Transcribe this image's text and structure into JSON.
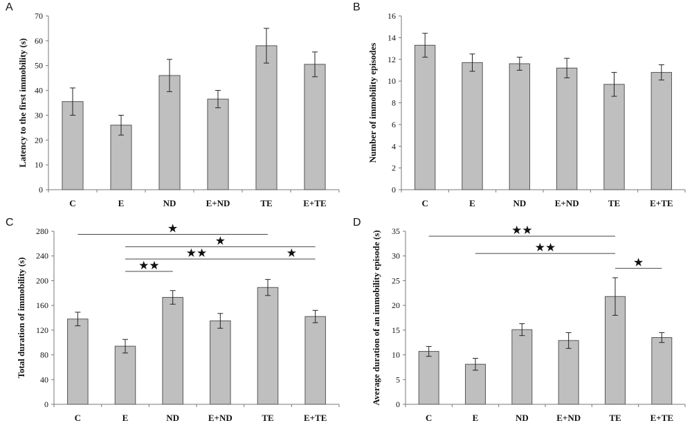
{
  "chart_data": [
    {
      "panel": "A",
      "type": "bar",
      "categories": [
        "C",
        "E",
        "ND",
        "E+ND",
        "TE",
        "E+TE"
      ],
      "values": [
        35.5,
        26,
        46,
        36.5,
        58,
        50.5
      ],
      "errors": [
        5.5,
        4,
        6.5,
        3.5,
        7,
        5
      ],
      "ylabel": "Latency to the first immobility (s)",
      "ylim": [
        0,
        70
      ],
      "yticks": [
        0,
        10,
        20,
        30,
        40,
        50,
        60,
        70
      ],
      "significance": []
    },
    {
      "panel": "B",
      "type": "bar",
      "categories": [
        "C",
        "E",
        "ND",
        "E+ND",
        "TE",
        "E+TE"
      ],
      "values": [
        13.3,
        11.7,
        11.6,
        11.2,
        9.7,
        10.8
      ],
      "errors": [
        1.1,
        0.8,
        0.6,
        0.9,
        1.1,
        0.7
      ],
      "ylabel": "Number of immobility episodes",
      "ylim": [
        0,
        16
      ],
      "yticks": [
        0,
        2,
        4,
        6,
        8,
        10,
        12,
        14,
        16
      ],
      "significance": []
    },
    {
      "panel": "C",
      "type": "bar",
      "categories": [
        "C",
        "E",
        "ND",
        "E+ND",
        "TE",
        "E+TE"
      ],
      "values": [
        138,
        94,
        173,
        135,
        189,
        142
      ],
      "errors": [
        11,
        11,
        11,
        12,
        13,
        10
      ],
      "ylabel": "Total duration of immobility (s)",
      "ylim": [
        0,
        280
      ],
      "yticks": [
        0,
        40,
        80,
        120,
        160,
        200,
        240,
        280
      ],
      "significance": [
        {
          "from": 0,
          "to": 4,
          "label": "★",
          "level": 275
        },
        {
          "from": 1,
          "to": 5,
          "label": "★",
          "level": 255
        },
        {
          "from": 1,
          "to": 4,
          "label": "★★",
          "level": 235
        },
        {
          "from": 4,
          "to": 5,
          "label": "★",
          "level": 235
        },
        {
          "from": 1,
          "to": 2,
          "label": "★★",
          "level": 215
        }
      ]
    },
    {
      "panel": "D",
      "type": "bar",
      "categories": [
        "C",
        "E",
        "ND",
        "E+ND",
        "TE",
        "E+TE"
      ],
      "values": [
        10.7,
        8.1,
        15.1,
        12.9,
        21.8,
        13.5
      ],
      "errors": [
        1.0,
        1.2,
        1.2,
        1.6,
        3.8,
        1.0
      ],
      "ylabel": "Average duration of an immobility episode (s)",
      "ylim": [
        0,
        35
      ],
      "yticks": [
        0,
        5,
        10,
        15,
        20,
        25,
        30,
        35
      ],
      "significance": [
        {
          "from": 0,
          "to": 4,
          "label": "★★",
          "level": 34
        },
        {
          "from": 1,
          "to": 4,
          "label": "★★",
          "level": 30.5
        },
        {
          "from": 4,
          "to": 5,
          "label": "★",
          "level": 27.5
        }
      ]
    }
  ]
}
